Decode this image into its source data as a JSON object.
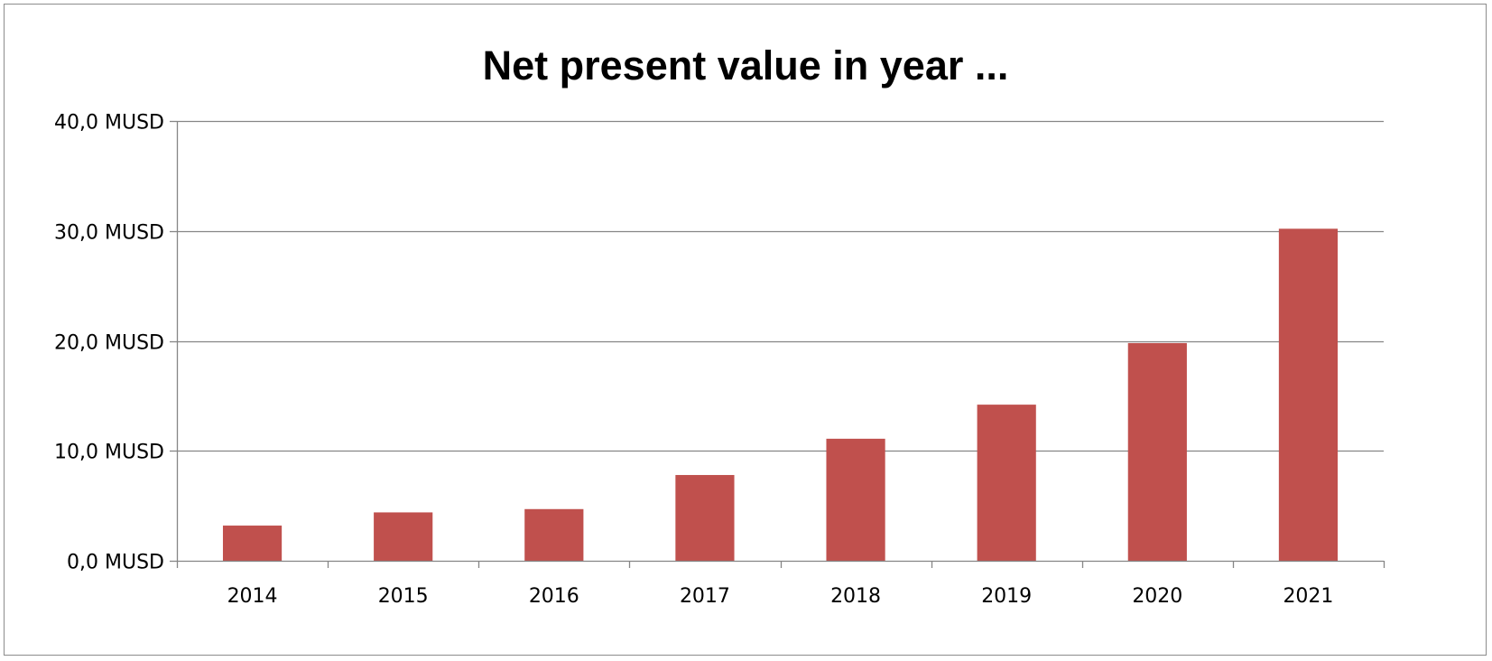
{
  "chart_data": {
    "type": "bar",
    "title": "Net present value in year ...",
    "xlabel": "",
    "ylabel": "",
    "categories": [
      "2014",
      "2015",
      "2016",
      "2017",
      "2018",
      "2019",
      "2020",
      "2021"
    ],
    "series": [
      {
        "values": [
          3.2,
          4.4,
          4.7,
          7.8,
          11.1,
          14.2,
          19.8,
          30.2
        ],
        "color": "#c0504d"
      }
    ],
    "ylim": [
      0,
      40
    ],
    "yticks": [
      0,
      10,
      20,
      30,
      40
    ],
    "ytick_labels": [
      "0,0 MUSD",
      "10,0 MUSD",
      "20,0 MUSD",
      "30,0 MUSD",
      "40,0 MUSD"
    ],
    "grid": true,
    "legend": "none",
    "colors": {
      "bar": "#c0504d",
      "grid": "#868686",
      "axis": "#868686"
    }
  }
}
